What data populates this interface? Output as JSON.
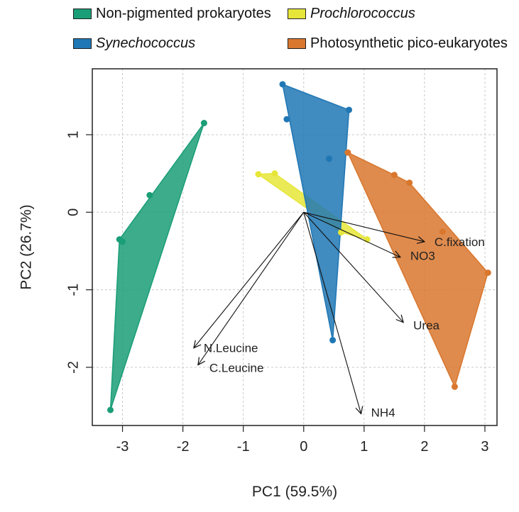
{
  "chart_data": {
    "type": "scatter",
    "xlabel": "PC1 (59.5%)",
    "ylabel": "PC2 (26.7%)",
    "xlim": [
      -3.5,
      3.2
    ],
    "ylim": [
      -2.75,
      1.85
    ],
    "xticks": [
      -3,
      -2,
      -1,
      0,
      1,
      2,
      3
    ],
    "yticks": [
      -2,
      -1,
      0,
      1
    ],
    "xtick_labels": [
      "-3",
      "-2",
      "-1",
      "0",
      "1",
      "2",
      "3"
    ],
    "ytick_labels": [
      "-2",
      "-1",
      "0",
      "1"
    ],
    "grid": true,
    "legend_position": "top",
    "series": [
      {
        "name": "Non-pigmented prokaryotes",
        "italic": false,
        "color": "#1a9e77",
        "points": [
          [
            -1.65,
            1.15
          ],
          [
            -2.55,
            0.22
          ],
          [
            -3.05,
            -0.35
          ],
          [
            -3.0,
            -0.38
          ],
          [
            -3.2,
            -2.55
          ]
        ],
        "hull": [
          [
            -1.65,
            1.15
          ],
          [
            -3.05,
            -0.35
          ],
          [
            -3.2,
            -2.55
          ]
        ]
      },
      {
        "name": "Prochlorococcus",
        "italic": true,
        "color": "#e6e63a",
        "points": [
          [
            -0.75,
            0.49
          ],
          [
            -0.48,
            0.5
          ],
          [
            0.62,
            -0.26
          ],
          [
            1.05,
            -0.35
          ]
        ],
        "hull": [
          [
            -0.75,
            0.49
          ],
          [
            -0.48,
            0.5
          ],
          [
            1.05,
            -0.35
          ],
          [
            0.62,
            -0.26
          ]
        ]
      },
      {
        "name": "Synechococcus",
        "italic": true,
        "color": "#1f77b4",
        "points": [
          [
            -0.35,
            1.65
          ],
          [
            -0.28,
            1.2
          ],
          [
            0.75,
            1.32
          ],
          [
            0.42,
            0.69
          ],
          [
            0.48,
            -1.65
          ]
        ],
        "hull": [
          [
            -0.35,
            1.65
          ],
          [
            0.75,
            1.32
          ],
          [
            0.48,
            -1.65
          ]
        ]
      },
      {
        "name": "Photosynthetic pico-eukaryotes",
        "italic": false,
        "color": "#d9772e",
        "points": [
          [
            0.73,
            0.77
          ],
          [
            1.5,
            0.48
          ],
          [
            1.75,
            0.38
          ],
          [
            2.3,
            -0.25
          ],
          [
            3.05,
            -0.78
          ],
          [
            2.5,
            -2.25
          ]
        ],
        "hull": [
          [
            0.73,
            0.77
          ],
          [
            1.5,
            0.48
          ],
          [
            1.75,
            0.38
          ],
          [
            3.05,
            -0.78
          ],
          [
            2.5,
            -2.25
          ]
        ]
      }
    ],
    "vectors": [
      {
        "label": "C.fixation",
        "x": 2.0,
        "y": -0.38
      },
      {
        "label": "NO3",
        "x": 1.6,
        "y": -0.58
      },
      {
        "label": "Urea",
        "x": 1.65,
        "y": -1.42
      },
      {
        "label": "NH4",
        "x": 0.95,
        "y": -2.6
      },
      {
        "label": "N.Leucine",
        "x": -1.82,
        "y": -1.75
      },
      {
        "label": "C.Leucine",
        "x": -1.75,
        "y": -1.97
      }
    ]
  }
}
